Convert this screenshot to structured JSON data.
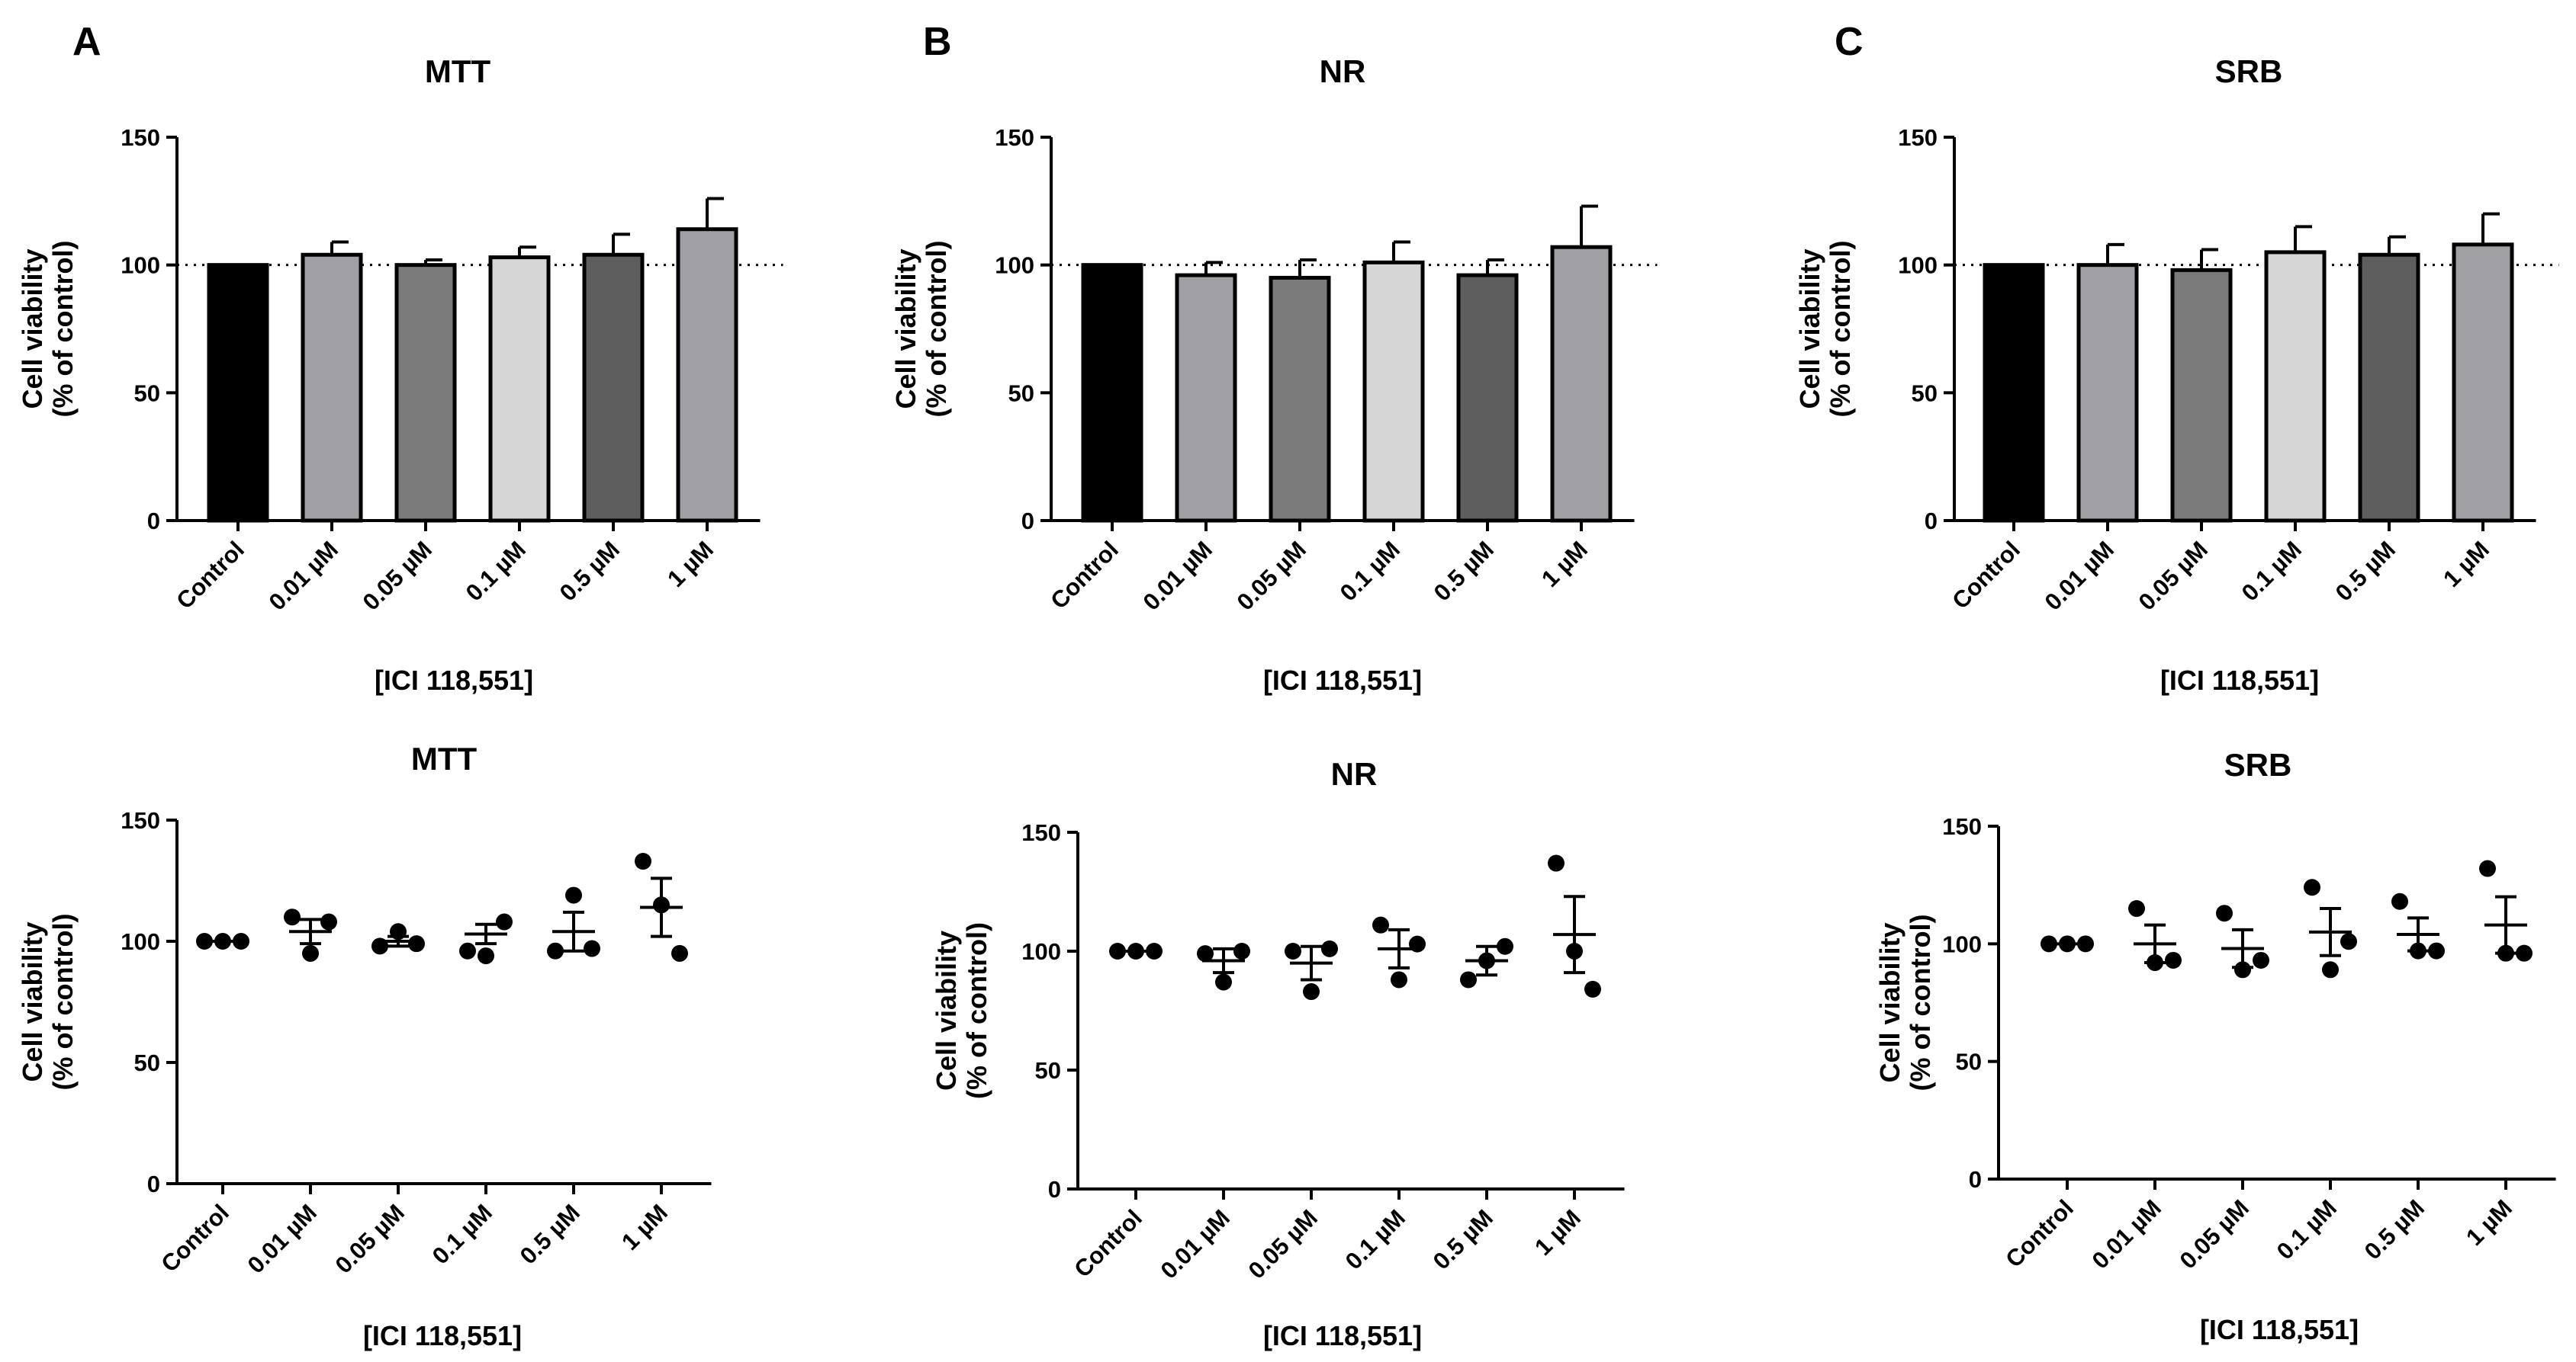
{
  "figure": {
    "panel_letters": [
      "A",
      "B",
      "C"
    ]
  },
  "chart_data": [
    {
      "id": "A-bar",
      "panel": "A",
      "type": "bar",
      "title": "MTT",
      "ylabel": [
        "Cell viability",
        "(% of control)"
      ],
      "xlabel": "[ICI 118,551]",
      "categories": [
        "Control",
        "0.01 µM",
        "0.05 µM",
        "0.1 µM",
        "0.5 µM",
        "1 µM"
      ],
      "values": [
        100,
        104,
        100,
        103,
        104,
        114
      ],
      "errors": [
        0,
        5,
        2,
        4,
        8,
        12
      ],
      "bar_colors": [
        "#000000",
        "#a0a0a4",
        "#7b7b7b",
        "#d6d6d6",
        "#5e5e5e",
        "#a0a0a4"
      ],
      "ylim": [
        0,
        150
      ],
      "yticks": [
        0,
        50,
        100,
        150
      ],
      "reference_line": 100
    },
    {
      "id": "B-bar",
      "panel": "B",
      "type": "bar",
      "title": "NR",
      "ylabel": [
        "Cell viability",
        "(% of control)"
      ],
      "xlabel": "[ICI 118,551]",
      "categories": [
        "Control",
        "0.01 µM",
        "0.05 µM",
        "0.1 µM",
        "0.5 µM",
        "1 µM"
      ],
      "values": [
        100,
        96,
        95,
        101,
        96,
        107
      ],
      "errors": [
        0,
        5,
        7,
        8,
        6,
        16
      ],
      "bar_colors": [
        "#000000",
        "#a0a0a4",
        "#7b7b7b",
        "#d6d6d6",
        "#5e5e5e",
        "#a0a0a4"
      ],
      "ylim": [
        0,
        150
      ],
      "yticks": [
        0,
        50,
        100,
        150
      ],
      "reference_line": 100
    },
    {
      "id": "C-bar",
      "panel": "C",
      "type": "bar",
      "title": "SRB",
      "ylabel": [
        "Cell viability",
        "(% of control)"
      ],
      "xlabel": "[ICI 118,551]",
      "categories": [
        "Control",
        "0.01 µM",
        "0.05 µM",
        "0.1 µM",
        "0.5 µM",
        "1 µM"
      ],
      "values": [
        100,
        100,
        98,
        105,
        104,
        108
      ],
      "errors": [
        0,
        8,
        8,
        10,
        7,
        12
      ],
      "bar_colors": [
        "#000000",
        "#a0a0a4",
        "#7b7b7b",
        "#d6d6d6",
        "#5e5e5e",
        "#a0a0a4"
      ],
      "ylim": [
        0,
        150
      ],
      "yticks": [
        0,
        50,
        100,
        150
      ],
      "reference_line": 100
    },
    {
      "id": "A-scatter",
      "panel": "A",
      "type": "scatter",
      "title": "MTT",
      "ylabel": [
        "Cell viability",
        "(% of control)"
      ],
      "xlabel": "[ICI 118,551]",
      "categories": [
        "Control",
        "0.01 µM",
        "0.05 µM",
        "0.1 µM",
        "0.5 µM",
        "1 µM"
      ],
      "points": [
        [
          100,
          100,
          100
        ],
        [
          110,
          95,
          108
        ],
        [
          98,
          104,
          99
        ],
        [
          96,
          94,
          108
        ],
        [
          96,
          119,
          97
        ],
        [
          133,
          115,
          95
        ]
      ],
      "means": [
        100,
        104,
        100,
        103,
        104,
        114
      ],
      "sem": [
        0,
        5,
        2,
        4,
        8,
        12
      ],
      "ylim": [
        0,
        150
      ],
      "yticks": [
        0,
        50,
        100,
        150
      ]
    },
    {
      "id": "B-scatter",
      "panel": "B",
      "type": "scatter",
      "title": "NR",
      "ylabel": [
        "Cell viability",
        "(% of control)"
      ],
      "xlabel": "[ICI 118,551]",
      "categories": [
        "Control",
        "0.01 µM",
        "0.05 µM",
        "0.1 µM",
        "0.5 µM",
        "1 µM"
      ],
      "points": [
        [
          100,
          100,
          100
        ],
        [
          99,
          87,
          100
        ],
        [
          100,
          83,
          101
        ],
        [
          111,
          88,
          103
        ],
        [
          88,
          96,
          102
        ],
        [
          137,
          100,
          84
        ]
      ],
      "means": [
        100,
        96,
        95,
        101,
        96,
        107
      ],
      "sem": [
        0,
        5,
        7,
        8,
        6,
        16
      ],
      "ylim": [
        0,
        150
      ],
      "yticks": [
        0,
        50,
        100,
        150
      ]
    },
    {
      "id": "C-scatter",
      "panel": "C",
      "type": "scatter",
      "title": "SRB",
      "ylabel": [
        "Cell viability",
        "(% of control)"
      ],
      "xlabel": "[ICI 118,551]",
      "categories": [
        "Control",
        "0.01 µM",
        "0.05 µM",
        "0.1 µM",
        "0.5 µM",
        "1 µM"
      ],
      "points": [
        [
          100,
          100,
          100
        ],
        [
          115,
          92,
          93
        ],
        [
          113,
          89,
          93
        ],
        [
          124,
          89,
          101
        ],
        [
          118,
          97,
          97
        ],
        [
          132,
          96,
          96
        ]
      ],
      "means": [
        100,
        100,
        98,
        105,
        104,
        108
      ],
      "sem": [
        0,
        8,
        8,
        10,
        7,
        12
      ],
      "ylim": [
        0,
        150
      ],
      "yticks": [
        0,
        50,
        100,
        150
      ]
    }
  ]
}
